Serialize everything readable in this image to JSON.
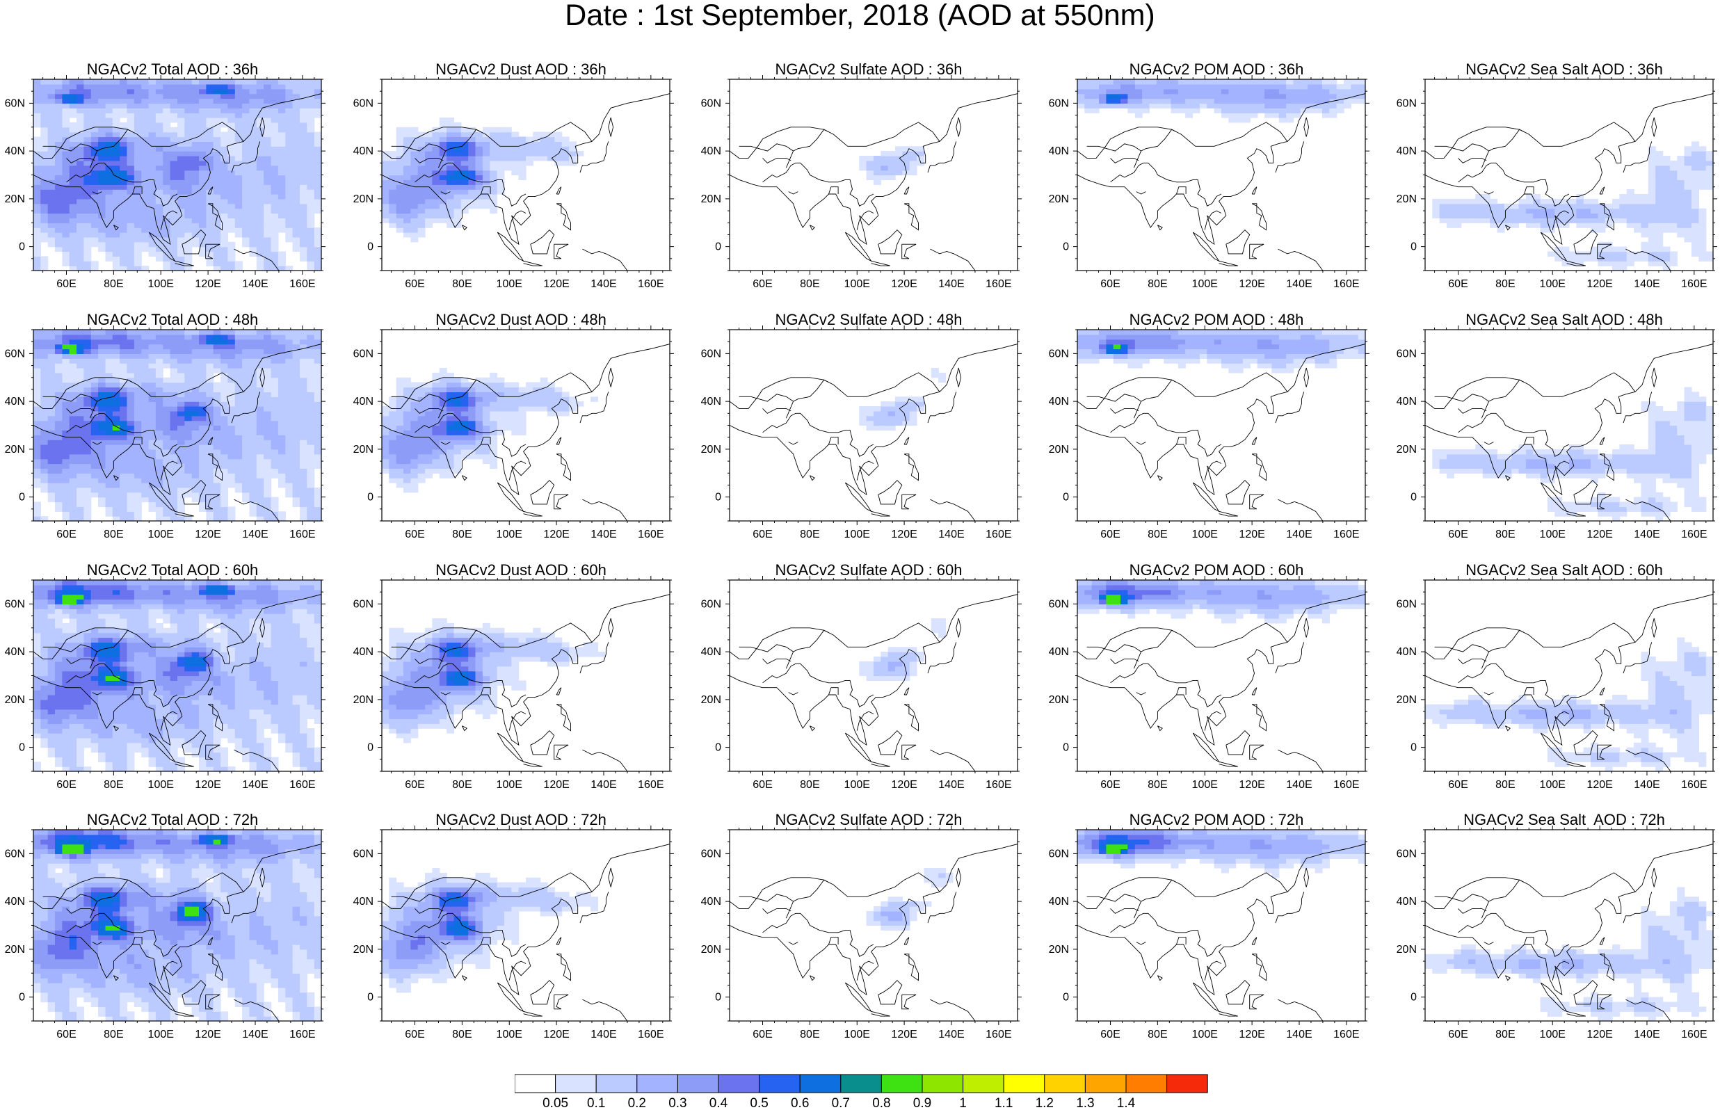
{
  "title": "Date : 1st September, 2018 (AOD at 550nm)",
  "panels": [
    {
      "title": "NGACv2 Total AOD : 36h",
      "species": "total",
      "hour": 36
    },
    {
      "title": "NGACv2 Dust AOD : 36h",
      "species": "dust",
      "hour": 36
    },
    {
      "title": "NGACv2 Sulfate AOD : 36h",
      "species": "sulfate",
      "hour": 36
    },
    {
      "title": "NGACv2 POM AOD : 36h",
      "species": "pom",
      "hour": 36
    },
    {
      "title": "NGACv2 Sea Salt AOD : 36h",
      "species": "seasalt",
      "hour": 36
    },
    {
      "title": "NGACv2 Total AOD : 48h",
      "species": "total",
      "hour": 48
    },
    {
      "title": "NGACv2 Dust AOD : 48h",
      "species": "dust",
      "hour": 48
    },
    {
      "title": "NGACv2 Sulfate AOD : 48h",
      "species": "sulfate",
      "hour": 48
    },
    {
      "title": "NGACv2 POM AOD : 48h",
      "species": "pom",
      "hour": 48
    },
    {
      "title": "NGACv2 Sea Salt AOD : 48h",
      "species": "seasalt",
      "hour": 48
    },
    {
      "title": "NGACv2 Total AOD : 60h",
      "species": "total",
      "hour": 60
    },
    {
      "title": "NGACv2 Dust AOD : 60h",
      "species": "dust",
      "hour": 60
    },
    {
      "title": "NGACv2 Sulfate AOD : 60h",
      "species": "sulfate",
      "hour": 60
    },
    {
      "title": "NGACv2 POM AOD : 60h",
      "species": "pom",
      "hour": 60
    },
    {
      "title": "NGACv2 Sea Salt AOD : 60h",
      "species": "seasalt",
      "hour": 60
    },
    {
      "title": "NGACv2 Total AOD : 72h",
      "species": "total",
      "hour": 72
    },
    {
      "title": "NGACv2 Dust AOD : 72h",
      "species": "dust",
      "hour": 72
    },
    {
      "title": "NGACv2 Sulfate AOD : 72h",
      "species": "sulfate",
      "hour": 72
    },
    {
      "title": "NGACv2 POM AOD : 72h",
      "species": "pom",
      "hour": 72
    },
    {
      "title": "NGACv2 Sea Salt  AOD : 72h",
      "species": "seasalt",
      "hour": 72
    }
  ],
  "map_extent": {
    "lon": [
      46,
      168
    ],
    "lat": [
      -10,
      70
    ]
  },
  "lon_ticks": [
    "60E",
    "80E",
    "100E",
    "120E",
    "140E",
    "160E"
  ],
  "lat_ticks": [
    "0",
    "20N",
    "40N",
    "60N"
  ],
  "colorbar": {
    "levels": [
      "0.05",
      "0.1",
      "0.2",
      "0.3",
      "0.4",
      "0.5",
      "0.6",
      "0.7",
      "0.8",
      "0.9",
      "1",
      "1.1",
      "1.2",
      "1.3",
      "1.4"
    ],
    "colors": [
      "#ffffff",
      "#d9e2ff",
      "#bccbff",
      "#a3b3ff",
      "#8c9cf7",
      "#6b73ef",
      "#2563f0",
      "#0e6fe0",
      "#0a8d8d",
      "#3ee212",
      "#8ee600",
      "#c0ee00",
      "#ffff00",
      "#ffd200",
      "#ffa500",
      "#ff7d00",
      "#f52a0a"
    ]
  }
}
